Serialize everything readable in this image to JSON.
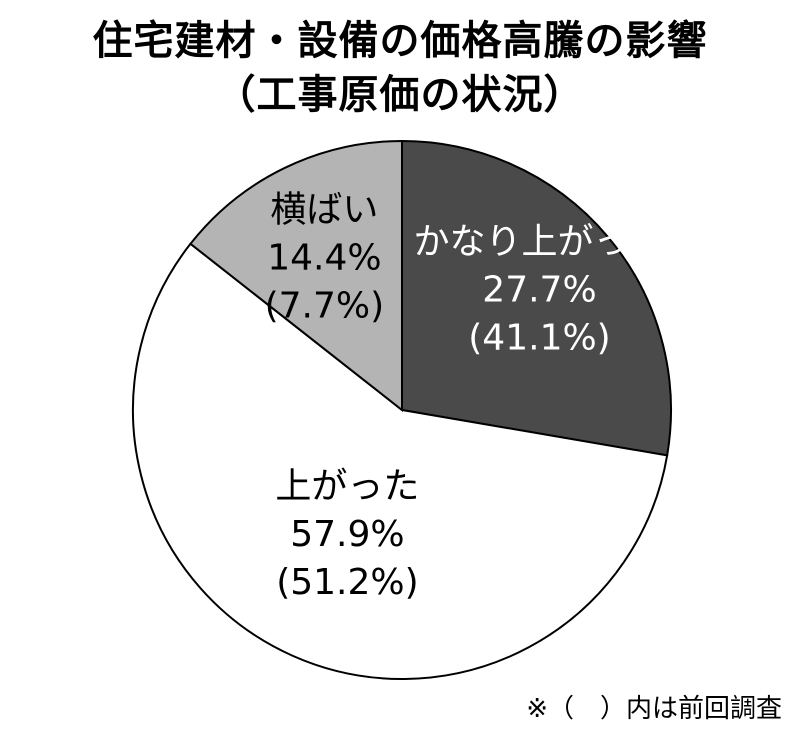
{
  "chart_data": {
    "type": "pie",
    "title_line1": "住宅建材・設備の価格高騰の影響",
    "title_line2": "（工事原価の状況）",
    "slices": [
      {
        "label": "かなり上がった",
        "value": 27.7,
        "previous": "(41.1%)",
        "value_text": "27.7%",
        "color": "#4a4a4a",
        "text_color": "#ffffff"
      },
      {
        "label": "上がった",
        "value": 57.9,
        "previous": "(51.2%)",
        "value_text": "57.9%",
        "color": "#ffffff",
        "text_color": "#000000"
      },
      {
        "label": "横ばい",
        "value": 14.4,
        "previous": "(7.7%)",
        "value_text": "14.4%",
        "color": "#b4b4b4",
        "text_color": "#000000"
      }
    ],
    "note": "※（　）内は前回調査"
  }
}
